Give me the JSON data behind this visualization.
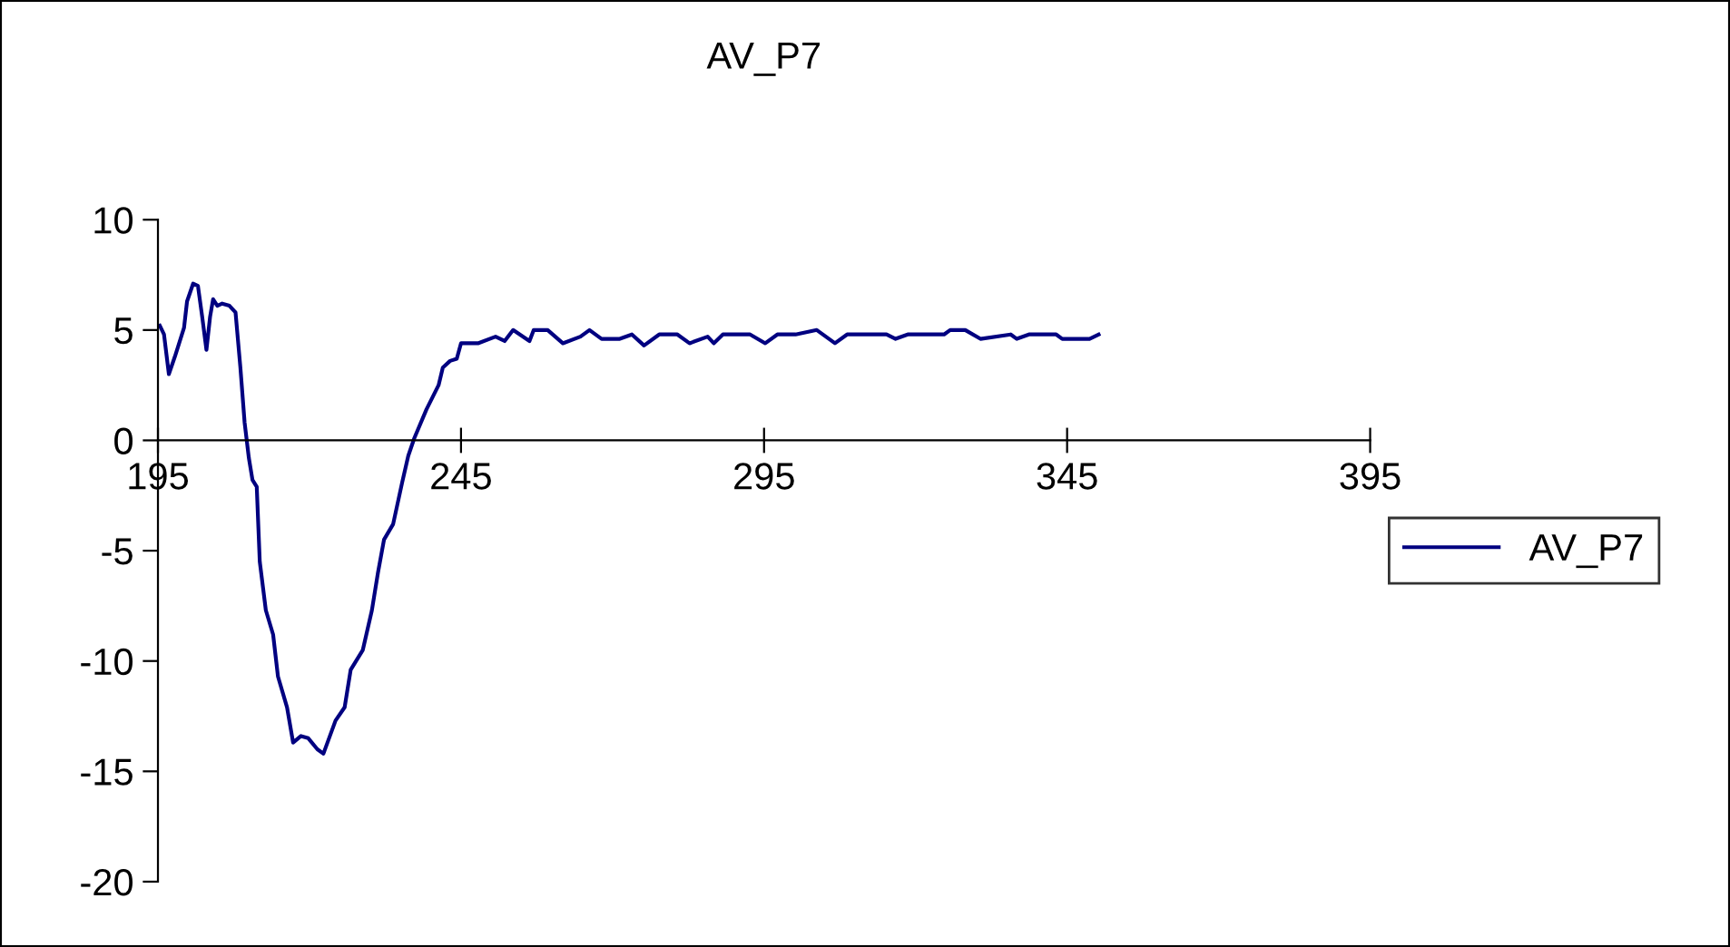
{
  "chart_data": {
    "type": "line",
    "title": "AV_P7",
    "xlim": [
      195,
      395
    ],
    "xticks": [
      195,
      245,
      295,
      345,
      395
    ],
    "ylim": [
      -20,
      10
    ],
    "yticks": [
      -20,
      -15,
      -10,
      -5,
      0,
      5,
      10
    ],
    "grid": false,
    "legend": "right",
    "marker": "none",
    "line_style": "solid",
    "series": [
      {
        "name": "AV_P7",
        "color": "#000080",
        "x": [
          195.3,
          196.0,
          196.8,
          197.8,
          199.3,
          199.8,
          200.8,
          201.6,
          202.3,
          203.0,
          203.6,
          204.1,
          204.8,
          205.6,
          206.8,
          207.8,
          208.6,
          209.3,
          210.0,
          210.6,
          211.3,
          211.8,
          212.8,
          214.0,
          214.8,
          216.3,
          217.3,
          218.6,
          219.8,
          221.3,
          222.3,
          224.3,
          225.8,
          226.8,
          228.8,
          230.3,
          231.3,
          232.3,
          233.8,
          235.3,
          236.3,
          237.3,
          239.3,
          241.3,
          242.0,
          243.2,
          244.3,
          245.0,
          247.8,
          250.7,
          252.2,
          253.6,
          256.3,
          257.0,
          259.3,
          261.8,
          264.7,
          266.2,
          268.2,
          271.2,
          273.2,
          275.2,
          277.7,
          280.7,
          282.7,
          285.7,
          286.7,
          288.2,
          292.7,
          295.2,
          297.2,
          300.2,
          303.7,
          306.7,
          308.7,
          315.2,
          316.7,
          318.7,
          324.7,
          325.7,
          328.2,
          330.7,
          335.7,
          336.7,
          338.7,
          343.2,
          344.2,
          348.7,
          350.2
        ],
        "values": [
          5.2,
          4.8,
          3.0,
          3.8,
          5.1,
          6.3,
          7.1,
          7.0,
          5.6,
          4.1,
          5.6,
          6.4,
          6.1,
          6.2,
          6.1,
          5.8,
          3.3,
          0.8,
          -0.8,
          -1.8,
          -2.1,
          -5.5,
          -7.7,
          -8.8,
          -10.7,
          -12.1,
          -13.7,
          -13.4,
          -13.5,
          -14.0,
          -14.2,
          -12.7,
          -12.1,
          -10.4,
          -9.5,
          -7.7,
          -6.0,
          -4.5,
          -3.8,
          -1.9,
          -0.7,
          0.1,
          1.4,
          2.5,
          3.3,
          3.6,
          3.7,
          4.4,
          4.4,
          4.7,
          4.5,
          5.0,
          4.5,
          5.0,
          5.0,
          4.4,
          4.7,
          5.0,
          4.6,
          4.6,
          4.8,
          4.3,
          4.8,
          4.8,
          4.4,
          4.7,
          4.4,
          4.8,
          4.8,
          4.4,
          4.8,
          4.8,
          5.0,
          4.4,
          4.8,
          4.8,
          4.6,
          4.8,
          4.8,
          5.0,
          5.0,
          4.6,
          4.8,
          4.6,
          4.8,
          4.8,
          4.6,
          4.6,
          4.8
        ]
      }
    ]
  }
}
